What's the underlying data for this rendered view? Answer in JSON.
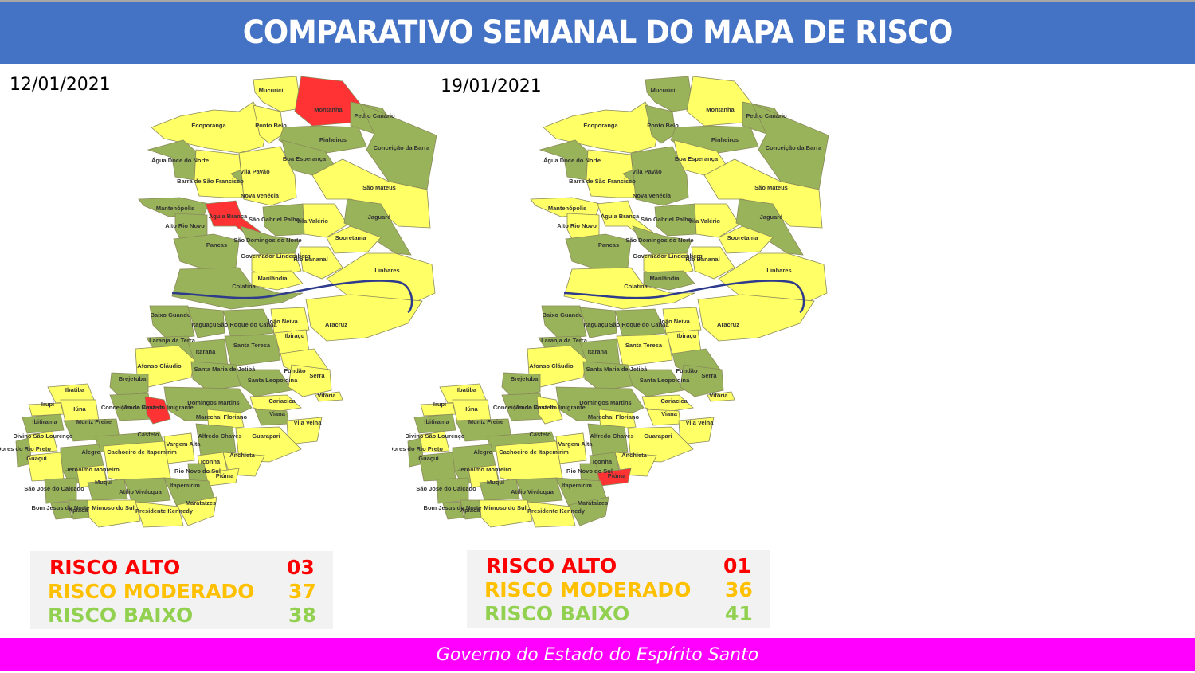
{
  "header": {
    "title": "COMPARATIVO SEMANAL DO MAPA DE RISCO"
  },
  "colors": {
    "header_bg": "#4472c4",
    "footer_bg": "#ff00ff",
    "risco_alto": "#ff0000",
    "risco_moderado": "#ffc000",
    "risco_baixo": "#92d050",
    "map_alto": "#ff3333",
    "map_moderado": "#ffff66",
    "map_baixo": "#99b35a",
    "river": "#2e3a8c"
  },
  "maps": [
    {
      "date": "12/01/2021",
      "legend": [
        {
          "label": "RISCO ALTO",
          "value": "03",
          "level": "alto"
        },
        {
          "label": "RISCO MODERADO",
          "value": "37",
          "level": "moderado"
        },
        {
          "label": "RISCO BAIXO",
          "value": "38",
          "level": "baixo"
        }
      ],
      "high_risk_municipalities": [
        "Montanha",
        "Águia Branca",
        "Venda Nova do Imigrante"
      ],
      "municipalities": [
        {
          "name": "Mucurici",
          "level": "moderado"
        },
        {
          "name": "Montanha",
          "level": "alto"
        },
        {
          "name": "Pedro Canário",
          "level": "baixo"
        },
        {
          "name": "Ecoporanga",
          "level": "moderado"
        },
        {
          "name": "Ponto Belo",
          "level": "moderado"
        },
        {
          "name": "Pinheiros",
          "level": "baixo"
        },
        {
          "name": "Conceição da Barra",
          "level": "baixo"
        },
        {
          "name": "Água Doce do Norte",
          "level": "baixo"
        },
        {
          "name": "Boa Esperança",
          "level": "baixo"
        },
        {
          "name": "Barra de São Francisco",
          "level": "moderado"
        },
        {
          "name": "Vila Pavão",
          "level": "baixo"
        },
        {
          "name": "Nova venécia",
          "level": "moderado"
        },
        {
          "name": "São Mateus",
          "level": "moderado"
        },
        {
          "name": "Mantenópolis",
          "level": "baixo"
        },
        {
          "name": "Águia Branca",
          "level": "alto"
        },
        {
          "name": "São Gabriel Palha",
          "level": "baixo"
        },
        {
          "name": "Vila Valério",
          "level": "moderado"
        },
        {
          "name": "Jaguaré",
          "level": "baixo"
        },
        {
          "name": "Alto Rio Novo",
          "level": "baixo"
        },
        {
          "name": "São Domingos do Norte",
          "level": "baixo"
        },
        {
          "name": "Sooretama",
          "level": "moderado"
        },
        {
          "name": "Pancas",
          "level": "baixo"
        },
        {
          "name": "Governador Lindemberg",
          "level": "moderado"
        },
        {
          "name": "Rio Bananal",
          "level": "moderado"
        },
        {
          "name": "Linhares",
          "level": "moderado"
        },
        {
          "name": "Marilândia",
          "level": "moderado"
        },
        {
          "name": "Colatina",
          "level": "baixo"
        },
        {
          "name": "Baixo Guandu",
          "level": "baixo"
        },
        {
          "name": "Itaguaçu",
          "level": "baixo"
        },
        {
          "name": "São Roque do Canaã",
          "level": "baixo"
        },
        {
          "name": "João Neiva",
          "level": "moderado"
        },
        {
          "name": "Aracruz",
          "level": "moderado"
        },
        {
          "name": "Ibiraçu",
          "level": "moderado"
        },
        {
          "name": "Laranja da Terra",
          "level": "baixo"
        },
        {
          "name": "Itarana",
          "level": "baixo"
        },
        {
          "name": "Santa Teresa",
          "level": "baixo"
        },
        {
          "name": "Fundão",
          "level": "moderado"
        },
        {
          "name": "Afonso Cláudio",
          "level": "moderado"
        },
        {
          "name": "Santa Maria de Jetibá",
          "level": "baixo"
        },
        {
          "name": "Santa Leopoldina",
          "level": "baixo"
        },
        {
          "name": "Serra",
          "level": "moderado"
        },
        {
          "name": "Brejetuba",
          "level": "baixo"
        },
        {
          "name": "Vitória",
          "level": "moderado"
        },
        {
          "name": "Ibatiba",
          "level": "moderado"
        },
        {
          "name": "Domingos Martins",
          "level": "baixo"
        },
        {
          "name": "Cariacica",
          "level": "moderado"
        },
        {
          "name": "Irupi",
          "level": "moderado"
        },
        {
          "name": "Iúna",
          "level": "moderado"
        },
        {
          "name": "Conceição do Castelo",
          "level": "baixo"
        },
        {
          "name": "Venda Nova do Imigrante",
          "level": "alto"
        },
        {
          "name": "Viana",
          "level": "baixo"
        },
        {
          "name": "Ibitirama",
          "level": "baixo"
        },
        {
          "name": "Muniz Freire",
          "level": "baixo"
        },
        {
          "name": "Marechal Floriano",
          "level": "moderado"
        },
        {
          "name": "Vila Velha",
          "level": "moderado"
        },
        {
          "name": "Divino São Lourenço",
          "level": "moderado"
        },
        {
          "name": "Castelo",
          "level": "baixo"
        },
        {
          "name": "Alfredo Chaves",
          "level": "baixo"
        },
        {
          "name": "Dores do Rio Preto",
          "level": "baixo"
        },
        {
          "name": "Vargem Alta",
          "level": "moderado"
        },
        {
          "name": "Guarapari",
          "level": "moderado"
        },
        {
          "name": "Alegre",
          "level": "baixo"
        },
        {
          "name": "Cachoeiro de Itapemirim",
          "level": "moderado"
        },
        {
          "name": "Guaçuí",
          "level": "moderado"
        },
        {
          "name": "Iconha",
          "level": "moderado"
        },
        {
          "name": "Anchieta",
          "level": "moderado"
        },
        {
          "name": "Jerônimo Monteiro",
          "level": "moderado"
        },
        {
          "name": "Rio Novo do Sul",
          "level": "baixo"
        },
        {
          "name": "Piúma",
          "level": "moderado"
        },
        {
          "name": "Muqui",
          "level": "baixo"
        },
        {
          "name": "Atílio Vivácqua",
          "level": "baixo"
        },
        {
          "name": "Itapemirim",
          "level": "baixo"
        },
        {
          "name": "São José do Calçado",
          "level": "baixo"
        },
        {
          "name": "Bom Jesus do Norte",
          "level": "baixo"
        },
        {
          "name": "Apiacá",
          "level": "baixo"
        },
        {
          "name": "Mimoso do Sul",
          "level": "moderado"
        },
        {
          "name": "Presidente Kennedy",
          "level": "moderado"
        },
        {
          "name": "Marataízes",
          "level": "moderado"
        }
      ]
    },
    {
      "date": "19/01/2021",
      "legend": [
        {
          "label": "RISCO ALTO",
          "value": "01",
          "level": "alto"
        },
        {
          "label": "RISCO MODERADO",
          "value": "36",
          "level": "moderado"
        },
        {
          "label": "RISCO BAIXO",
          "value": "41",
          "level": "baixo"
        }
      ],
      "high_risk_municipalities": [
        "Piúma"
      ],
      "municipalities": [
        {
          "name": "Mucurici",
          "level": "baixo"
        },
        {
          "name": "Montanha",
          "level": "moderado"
        },
        {
          "name": "Pedro Canário",
          "level": "baixo"
        },
        {
          "name": "Ecoporanga",
          "level": "moderado"
        },
        {
          "name": "Ponto Belo",
          "level": "baixo"
        },
        {
          "name": "Pinheiros",
          "level": "baixo"
        },
        {
          "name": "Conceição da Barra",
          "level": "baixo"
        },
        {
          "name": "Água Doce do Norte",
          "level": "baixo"
        },
        {
          "name": "Boa Esperança",
          "level": "moderado"
        },
        {
          "name": "Barra de São Francisco",
          "level": "moderado"
        },
        {
          "name": "Vila Pavão",
          "level": "baixo"
        },
        {
          "name": "Nova venécia",
          "level": "baixo"
        },
        {
          "name": "São Mateus",
          "level": "moderado"
        },
        {
          "name": "Mantenópolis",
          "level": "moderado"
        },
        {
          "name": "Águia Branca",
          "level": "moderado"
        },
        {
          "name": "São Gabriel Palha",
          "level": "baixo"
        },
        {
          "name": "Vila Valério",
          "level": "moderado"
        },
        {
          "name": "Jaguaré",
          "level": "baixo"
        },
        {
          "name": "Alto Rio Novo",
          "level": "moderado"
        },
        {
          "name": "São Domingos do Norte",
          "level": "baixo"
        },
        {
          "name": "Sooretama",
          "level": "moderado"
        },
        {
          "name": "Pancas",
          "level": "baixo"
        },
        {
          "name": "Governador Lindemberg",
          "level": "moderado"
        },
        {
          "name": "Rio Bananal",
          "level": "moderado"
        },
        {
          "name": "Linhares",
          "level": "moderado"
        },
        {
          "name": "Marilândia",
          "level": "baixo"
        },
        {
          "name": "Colatina",
          "level": "moderado"
        },
        {
          "name": "Baixo Guandu",
          "level": "baixo"
        },
        {
          "name": "Itaguaçu",
          "level": "baixo"
        },
        {
          "name": "São Roque do Canaã",
          "level": "baixo"
        },
        {
          "name": "João Neiva",
          "level": "moderado"
        },
        {
          "name": "Aracruz",
          "level": "moderado"
        },
        {
          "name": "Ibiraçu",
          "level": "moderado"
        },
        {
          "name": "Laranja da Terra",
          "level": "baixo"
        },
        {
          "name": "Itarana",
          "level": "baixo"
        },
        {
          "name": "Santa Teresa",
          "level": "moderado"
        },
        {
          "name": "Fundão",
          "level": "baixo"
        },
        {
          "name": "Afonso Cláudio",
          "level": "moderado"
        },
        {
          "name": "Santa Maria de Jetibá",
          "level": "baixo"
        },
        {
          "name": "Santa Leopoldina",
          "level": "baixo"
        },
        {
          "name": "Serra",
          "level": "baixo"
        },
        {
          "name": "Brejetuba",
          "level": "baixo"
        },
        {
          "name": "Vitória",
          "level": "moderado"
        },
        {
          "name": "Ibatiba",
          "level": "moderado"
        },
        {
          "name": "Domingos Martins",
          "level": "baixo"
        },
        {
          "name": "Cariacica",
          "level": "moderado"
        },
        {
          "name": "Irupi",
          "level": "moderado"
        },
        {
          "name": "Iúna",
          "level": "moderado"
        },
        {
          "name": "Conceição do Castelo",
          "level": "baixo"
        },
        {
          "name": "Venda Nova do Imigrante",
          "level": "moderado"
        },
        {
          "name": "Viana",
          "level": "moderado"
        },
        {
          "name": "Ibitirama",
          "level": "baixo"
        },
        {
          "name": "Muniz Freire",
          "level": "baixo"
        },
        {
          "name": "Marechal Floriano",
          "level": "moderado"
        },
        {
          "name": "Vila Velha",
          "level": "moderado"
        },
        {
          "name": "Divino São Lourenço",
          "level": "moderado"
        },
        {
          "name": "Castelo",
          "level": "baixo"
        },
        {
          "name": "Alfredo Chaves",
          "level": "baixo"
        },
        {
          "name": "Dores do Rio Preto",
          "level": "baixo"
        },
        {
          "name": "Vargem Alta",
          "level": "moderado"
        },
        {
          "name": "Guarapari",
          "level": "moderado"
        },
        {
          "name": "Alegre",
          "level": "baixo"
        },
        {
          "name": "Cachoeiro de Itapemirim",
          "level": "moderado"
        },
        {
          "name": "Guaçuí",
          "level": "baixo"
        },
        {
          "name": "Iconha",
          "level": "baixo"
        },
        {
          "name": "Anchieta",
          "level": "moderado"
        },
        {
          "name": "Jerônimo Monteiro",
          "level": "moderado"
        },
        {
          "name": "Rio Novo do Sul",
          "level": "baixo"
        },
        {
          "name": "Piúma",
          "level": "alto"
        },
        {
          "name": "Muqui",
          "level": "baixo"
        },
        {
          "name": "Atílio Vivácqua",
          "level": "baixo"
        },
        {
          "name": "Itapemirim",
          "level": "baixo"
        },
        {
          "name": "São José do Calçado",
          "level": "baixo"
        },
        {
          "name": "Bom Jesus do Norte",
          "level": "baixo"
        },
        {
          "name": "Apiacá",
          "level": "baixo"
        },
        {
          "name": "Mimoso do Sul",
          "level": "moderado"
        },
        {
          "name": "Presidente Kennedy",
          "level": "moderado"
        },
        {
          "name": "Marataízes",
          "level": "baixo"
        }
      ]
    }
  ],
  "footer": {
    "text": "Governo do Estado do Espírito Santo"
  }
}
